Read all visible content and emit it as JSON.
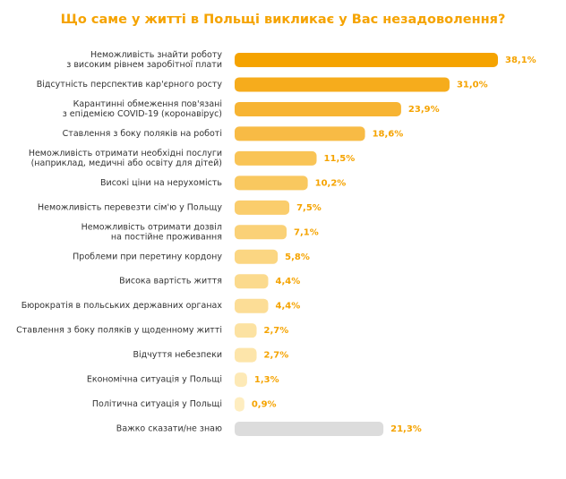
{
  "chart_data": {
    "type": "bar",
    "orientation": "horizontal",
    "title": "Що саме у житті в Польщі викликає у Вас незадоволення?",
    "categories": [
      [
        "Неможливість знайти роботу",
        "з високим рівнем заробітної плати"
      ],
      [
        "Відсутність перспектив кар'єрного росту"
      ],
      [
        "Карантинні обмеження пов'язані",
        "з епідемією COVID-19 (коронавірус)"
      ],
      [
        "Ставлення з боку поляків на роботі"
      ],
      [
        "Неможливість отримати необхідні послуги",
        "(наприклад, медичні або освіту для дітей)"
      ],
      [
        "Високі ціни на нерухомість"
      ],
      [
        "Неможливість перевезти сім'ю у Польщу"
      ],
      [
        "Неможливість отримати дозвіл",
        "на постійне проживання"
      ],
      [
        "Проблеми при перетину кордону"
      ],
      [
        "Висока вартість життя"
      ],
      [
        "Бюрократія в польських державних органах"
      ],
      [
        "Ставлення з боку поляків у щоденному житті"
      ],
      [
        "Відчуття небезпеки"
      ],
      [
        "Економічна ситуація у Польщі"
      ],
      [
        "Політична ситуація у Польщі"
      ],
      [
        "Важко сказати/не знаю"
      ]
    ],
    "values": [
      38.1,
      31.0,
      23.9,
      18.6,
      11.5,
      10.2,
      7.5,
      7.1,
      5.8,
      4.4,
      4.4,
      2.7,
      2.7,
      1.3,
      0.9,
      21.3
    ],
    "value_labels": [
      "38,1%",
      "31,0%",
      "23,9%",
      "18,6%",
      "11,5%",
      "10,2%",
      "7,5%",
      "7,1%",
      "5,8%",
      "4,4%",
      "4,4%",
      "2,7%",
      "2,7%",
      "1,3%",
      "0,9%",
      "21,3%"
    ],
    "colors": [
      "#f5a300",
      "#f6ac1c",
      "#f7b433",
      "#f8bb45",
      "#f9c456",
      "#f9c85f",
      "#facd6c",
      "#fad177",
      "#fbd682",
      "#fbda8d",
      "#fcdd96",
      "#fce2a2",
      "#fde5aa",
      "#fde9b6",
      "#feedc0",
      "#dcdcdc"
    ],
    "label_color": "#f5a300"
  }
}
